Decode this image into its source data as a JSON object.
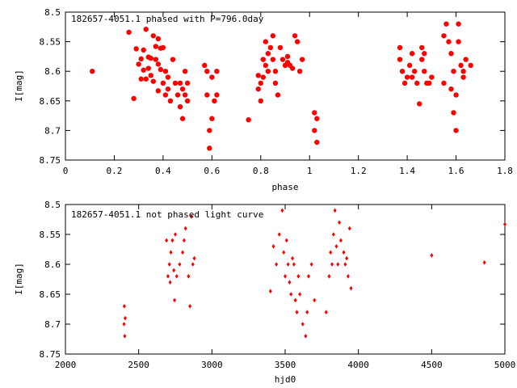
{
  "chart_data": [
    {
      "type": "scatter",
      "title": "182657-4051.1 phased with P=796.0day",
      "xlabel": "phase",
      "ylabel": "I[mag]",
      "xlim": [
        0,
        1.8
      ],
      "ylim": [
        8.5,
        8.75
      ],
      "y_inverted": true,
      "x_ticks": [
        "0",
        "0.2",
        "0.4",
        "0.6",
        "0.8",
        "1",
        "1.2",
        "1.4",
        "1.6",
        "1.8"
      ],
      "y_ticks": [
        "8.5",
        "8.55",
        "8.6",
        "8.65",
        "8.7",
        "8.75"
      ],
      "marker": "filled-circle",
      "color": "#ff0000",
      "series": [
        {
          "x": [
            0.11,
            0.26,
            0.28,
            0.29,
            0.3,
            0.31,
            0.31,
            0.32,
            0.32,
            0.33,
            0.33,
            0.34,
            0.34,
            0.35,
            0.35,
            0.36,
            0.36,
            0.37,
            0.37,
            0.38,
            0.38,
            0.38,
            0.39,
            0.39,
            0.4,
            0.4,
            0.41,
            0.41,
            0.42,
            0.42,
            0.43,
            0.44,
            0.45,
            0.46,
            0.47,
            0.47,
            0.48,
            0.48,
            0.49,
            0.49,
            0.5,
            0.5,
            0.57,
            0.58,
            0.58,
            0.59,
            0.59,
            0.6,
            0.6,
            0.61,
            0.62,
            0.62,
            0.75,
            0.79,
            0.79,
            0.8,
            0.8,
            0.81,
            0.81,
            0.82,
            0.82,
            0.83,
            0.83,
            0.84,
            0.85,
            0.85,
            0.86,
            0.86,
            0.87,
            0.88,
            0.89,
            0.9,
            0.91,
            0.91,
            0.92,
            0.93,
            0.94,
            0.95,
            0.96,
            0.97,
            1.02,
            1.02,
            1.03,
            1.03,
            1.37,
            1.37,
            1.38,
            1.39,
            1.4,
            1.41,
            1.42,
            1.42,
            1.43,
            1.44,
            1.45,
            1.46,
            1.46,
            1.47,
            1.47,
            1.48,
            1.49,
            1.5,
            1.55,
            1.55,
            1.56,
            1.57,
            1.58,
            1.58,
            1.59,
            1.59,
            1.6,
            1.6,
            1.61,
            1.61,
            1.62,
            1.63,
            1.63,
            1.64,
            1.66
          ],
          "y": [
            8.6,
            8.534,
            8.646,
            8.562,
            8.588,
            8.613,
            8.579,
            8.598,
            8.564,
            8.529,
            8.613,
            8.576,
            8.595,
            8.578,
            8.607,
            8.54,
            8.617,
            8.558,
            8.58,
            8.588,
            8.545,
            8.633,
            8.597,
            8.561,
            8.56,
            8.62,
            8.6,
            8.64,
            8.61,
            8.63,
            8.65,
            8.58,
            8.62,
            8.64,
            8.66,
            8.62,
            8.63,
            8.68,
            8.64,
            8.6,
            8.65,
            8.62,
            8.59,
            8.6,
            8.64,
            8.7,
            8.73,
            8.68,
            8.61,
            8.65,
            8.6,
            8.64,
            8.682,
            8.607,
            8.63,
            8.62,
            8.65,
            8.61,
            8.58,
            8.55,
            8.59,
            8.57,
            8.6,
            8.56,
            8.54,
            8.58,
            8.6,
            8.62,
            8.64,
            8.56,
            8.58,
            8.59,
            8.585,
            8.575,
            8.59,
            8.595,
            8.54,
            8.55,
            8.6,
            8.58,
            8.7,
            8.67,
            8.68,
            8.72,
            8.56,
            8.58,
            8.6,
            8.62,
            8.61,
            8.59,
            8.61,
            8.57,
            8.6,
            8.62,
            8.655,
            8.58,
            8.56,
            8.57,
            8.6,
            8.62,
            8.62,
            8.61,
            8.62,
            8.54,
            8.52,
            8.55,
            8.57,
            8.63,
            8.6,
            8.67,
            8.64,
            8.7,
            8.52,
            8.55,
            8.59,
            8.61,
            8.6,
            8.58,
            8.59
          ]
        }
      ]
    },
    {
      "type": "scatter",
      "title": "182657-4051.1 not phased light curve",
      "xlabel": "hjd0",
      "ylabel": "I[mag]",
      "xlim": [
        2000,
        5000
      ],
      "ylim": [
        8.5,
        8.75
      ],
      "y_inverted": true,
      "x_ticks": [
        "2000",
        "2500",
        "3000",
        "3500",
        "4000",
        "4500",
        "5000"
      ],
      "y_ticks": [
        "8.5",
        "8.55",
        "8.6",
        "8.65",
        "8.7",
        "8.75"
      ],
      "marker": "small-diamond",
      "color": "#ff0000",
      "series": [
        {
          "x": [
            2400,
            2402,
            2405,
            2408,
            2690,
            2700,
            2710,
            2715,
            2720,
            2730,
            2740,
            2745,
            2750,
            2760,
            2780,
            2800,
            2810,
            2820,
            2840,
            2850,
            2860,
            2870,
            2880,
            3400,
            3420,
            3440,
            3460,
            3480,
            3490,
            3500,
            3510,
            3520,
            3530,
            3540,
            3550,
            3560,
            3570,
            3580,
            3590,
            3600,
            3620,
            3640,
            3650,
            3660,
            3680,
            3700,
            3780,
            3800,
            3810,
            3820,
            3830,
            3840,
            3850,
            3860,
            3870,
            3880,
            3900,
            3910,
            3920,
            3930,
            3940,
            3950,
            4500,
            4860,
            5000
          ],
          "y": [
            8.7,
            8.67,
            8.72,
            8.69,
            8.56,
            8.62,
            8.6,
            8.63,
            8.58,
            8.56,
            8.61,
            8.66,
            8.55,
            8.62,
            8.6,
            8.58,
            8.56,
            8.54,
            8.62,
            8.67,
            8.52,
            8.6,
            8.59,
            8.645,
            8.57,
            8.6,
            8.55,
            8.51,
            8.58,
            8.62,
            8.56,
            8.6,
            8.63,
            8.65,
            8.59,
            8.6,
            8.66,
            8.68,
            8.62,
            8.65,
            8.7,
            8.72,
            8.68,
            8.62,
            8.6,
            8.66,
            8.68,
            8.62,
            8.58,
            8.6,
            8.55,
            8.51,
            8.57,
            8.6,
            8.53,
            8.56,
            8.58,
            8.6,
            8.59,
            8.62,
            8.54,
            8.64,
            8.585,
            8.597,
            8.533
          ]
        }
      ]
    }
  ]
}
